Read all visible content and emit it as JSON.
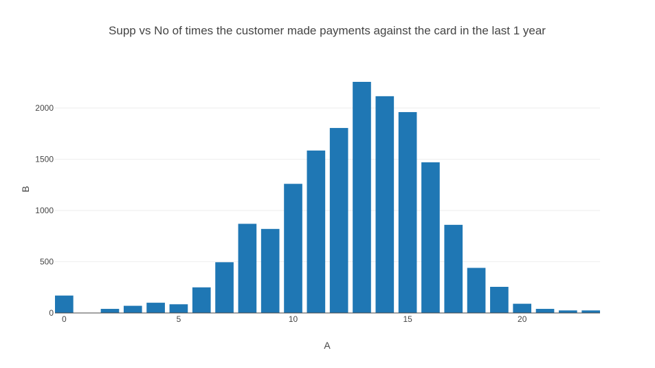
{
  "chart_data": {
    "type": "bar",
    "title": "Supp vs No of times the customer made payments against the card in the last 1 year",
    "xlabel": "A",
    "ylabel": "B",
    "x": [
      0,
      1,
      2,
      3,
      4,
      5,
      6,
      7,
      8,
      9,
      10,
      11,
      12,
      13,
      14,
      15,
      16,
      17,
      18,
      19,
      20,
      21,
      22,
      23
    ],
    "values": [
      170,
      0,
      40,
      70,
      100,
      85,
      250,
      495,
      870,
      820,
      1260,
      1585,
      1805,
      2255,
      2115,
      1960,
      1470,
      860,
      440,
      255,
      90,
      40,
      25,
      25
    ],
    "xlim": [
      -0.4,
      23.4
    ],
    "ylim": [
      0,
      2255
    ],
    "x_ticks": [
      0,
      5,
      10,
      15,
      20
    ],
    "y_ticks": [
      0,
      500,
      1000,
      1500,
      2000
    ],
    "grid": true,
    "bar_color": "#1f77b4"
  }
}
